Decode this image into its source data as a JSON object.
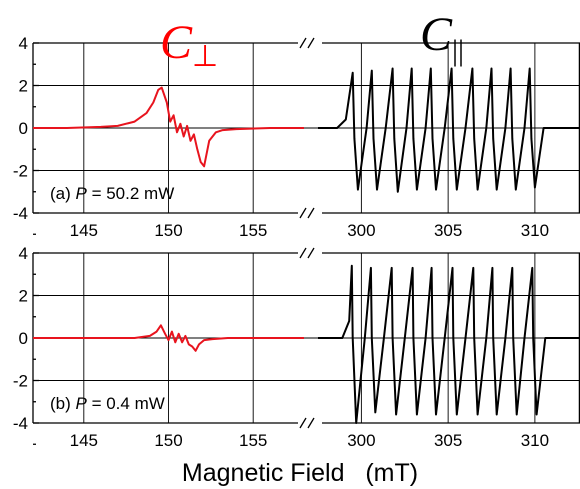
{
  "chart_data": {
    "type": "line",
    "xlabel": "Magnetic Field   (mT)",
    "y_ticks": [
      4,
      2,
      0,
      -2,
      -4
    ],
    "ylim": [
      -4,
      4
    ],
    "x_ticks_left": [
      145,
      150,
      155
    ],
    "x_ticks_right": [
      300,
      305,
      310
    ],
    "xlim_left": [
      142,
      158
    ],
    "xlim_right": [
      297.5,
      312.6
    ],
    "broken_x_axis": true,
    "grid": true,
    "titles": [
      {
        "text": "C",
        "subscript": "⊥",
        "color": "#ff0000"
      },
      {
        "text": "C",
        "subscript": "||",
        "color": "#000000"
      }
    ],
    "panels": [
      {
        "label": "(a)",
        "power_symbol": "P",
        "power_value": " = 50.2 mW",
        "series": [
          {
            "segment": "left",
            "color": "#e8141e",
            "x": [
              142,
              144,
              146,
              147,
              148,
              148.7,
              149.1,
              149.4,
              149.6,
              149.9,
              150.1,
              150.3,
              150.5,
              150.7,
              150.9,
              151.1,
              151.3,
              151.5,
              151.7,
              151.9,
              152.1,
              152.4,
              152.8,
              153.2,
              154,
              156,
              158
            ],
            "y": [
              0,
              0,
              0.05,
              0.1,
              0.3,
              0.7,
              1.2,
              1.8,
              1.9,
              1.2,
              0.3,
              0.6,
              -0.2,
              0.2,
              -0.4,
              0.1,
              -0.6,
              -0.3,
              -1.0,
              -1.6,
              -1.8,
              -0.6,
              -0.2,
              -0.1,
              -0.05,
              0,
              0
            ]
          },
          {
            "segment": "right",
            "color": "#000000",
            "x": [
              297.5,
              298.6,
              299.1,
              299.5,
              299.6,
              299.8,
              300.3,
              300.6,
              300.7,
              300.9,
              301.4,
              301.8,
              301.9,
              302.1,
              302.6,
              302.9,
              303.0,
              303.2,
              303.7,
              304.0,
              304.1,
              304.3,
              304.8,
              305.2,
              305.3,
              305.5,
              306.0,
              306.4,
              306.5,
              306.7,
              307.2,
              307.5,
              307.6,
              307.8,
              308.3,
              308.6,
              308.7,
              308.9,
              309.4,
              309.7,
              309.8,
              310.0,
              310.5,
              312.6
            ],
            "y": [
              0,
              0,
              0.4,
              2.6,
              -0.5,
              -2.9,
              0,
              2.7,
              -0.5,
              -2.9,
              0,
              2.8,
              -0.5,
              -3.0,
              0,
              2.8,
              -0.5,
              -2.9,
              0,
              2.8,
              -0.5,
              -2.9,
              0,
              2.8,
              -0.5,
              -2.9,
              0,
              2.8,
              -0.5,
              -2.9,
              0,
              2.8,
              -0.5,
              -2.9,
              0,
              2.8,
              -0.5,
              -2.9,
              0,
              2.8,
              -0.5,
              -2.8,
              0,
              0
            ]
          }
        ]
      },
      {
        "label": "(b)",
        "power_symbol": "P",
        "power_value": " = 0.4 mW",
        "series": [
          {
            "segment": "left",
            "color": "#e8141e",
            "x": [
              142,
              146,
              148,
              148.9,
              149.3,
              149.55,
              149.8,
              150.0,
              150.2,
              150.4,
              150.6,
              150.8,
              151.0,
              151.2,
              151.4,
              151.6,
              151.8,
              152.1,
              152.6,
              153.5,
              158
            ],
            "y": [
              0,
              0,
              0,
              0.1,
              0.3,
              0.6,
              0.2,
              -0.1,
              0.3,
              -0.2,
              0.2,
              -0.2,
              0.1,
              -0.3,
              -0.4,
              -0.6,
              -0.3,
              -0.1,
              -0.05,
              0,
              0
            ]
          },
          {
            "segment": "right",
            "color": "#000000",
            "x": [
              297.5,
              298.9,
              299.3,
              299.45,
              299.5,
              299.7,
              300.2,
              300.55,
              300.6,
              300.8,
              301.3,
              301.75,
              301.8,
              302.0,
              302.5,
              302.95,
              303.0,
              303.2,
              303.7,
              304.05,
              304.1,
              304.3,
              304.8,
              305.25,
              305.3,
              305.5,
              306.0,
              306.45,
              306.5,
              306.7,
              307.2,
              307.55,
              307.6,
              307.8,
              308.3,
              308.7,
              308.75,
              308.95,
              309.4,
              309.85,
              309.9,
              310.1,
              310.6,
              312.6
            ],
            "y": [
              0,
              0,
              0.8,
              3.4,
              0,
              -4.0,
              0,
              3.3,
              0,
              -3.5,
              0,
              3.3,
              0,
              -3.6,
              0,
              3.3,
              0,
              -3.6,
              0,
              3.3,
              0,
              -3.6,
              0,
              3.3,
              0,
              -3.6,
              0,
              3.3,
              0,
              -3.6,
              0,
              3.3,
              0,
              -3.6,
              0,
              3.3,
              0,
              -3.6,
              0,
              3.3,
              0,
              -3.6,
              0,
              0
            ]
          }
        ]
      }
    ]
  }
}
